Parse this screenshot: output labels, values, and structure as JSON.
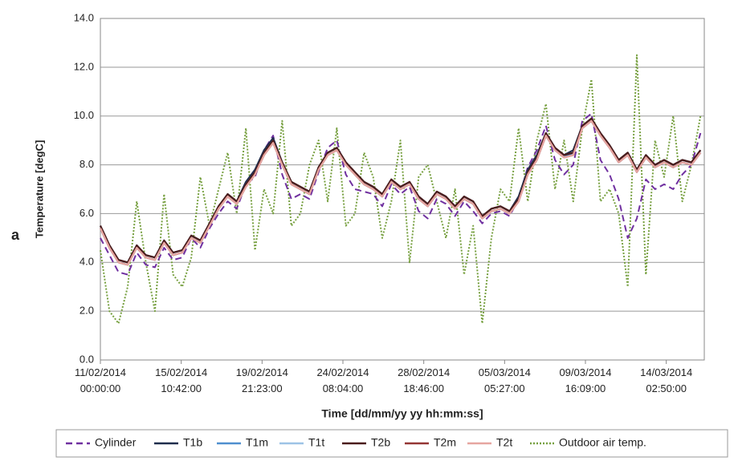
{
  "chart_data": {
    "type": "line",
    "panel_label": "a",
    "y_label": "Temperature [degC]",
    "x_label": "Time [dd/mm/yy yy hh:mm:ss]",
    "x": [
      "11/02/2014 00:00:00",
      "11/02/2014 12:00:00",
      "12/02/2014 00:00:00",
      "12/02/2014 12:00:00",
      "13/02/2014 00:00:00",
      "13/02/2014 12:00:00",
      "14/02/2014 00:00:00",
      "14/02/2014 12:00:00",
      "15/02/2014 00:00:00",
      "15/02/2014 12:00:00",
      "16/02/2014 00:00:00",
      "16/02/2014 12:00:00",
      "17/02/2014 00:00:00",
      "17/02/2014 12:00:00",
      "18/02/2014 00:00:00",
      "18/02/2014 12:00:00",
      "19/02/2014 00:00:00",
      "19/02/2014 12:00:00",
      "20/02/2014 00:00:00",
      "20/02/2014 12:00:00",
      "21/02/2014 00:00:00",
      "21/02/2014 12:00:00",
      "22/02/2014 00:00:00",
      "22/02/2014 12:00:00",
      "23/02/2014 00:00:00",
      "23/02/2014 12:00:00",
      "24/02/2014 00:00:00",
      "24/02/2014 12:00:00",
      "25/02/2014 00:00:00",
      "25/02/2014 12:00:00",
      "26/02/2014 00:00:00",
      "26/02/2014 12:00:00",
      "27/02/2014 00:00:00",
      "27/02/2014 12:00:00",
      "28/02/2014 00:00:00",
      "28/02/2014 12:00:00",
      "01/03/2014 00:00:00",
      "01/03/2014 12:00:00",
      "02/03/2014 00:00:00",
      "02/03/2014 12:00:00",
      "03/03/2014 00:00:00",
      "03/03/2014 12:00:00",
      "04/03/2014 00:00:00",
      "04/03/2014 12:00:00",
      "05/03/2014 00:00:00",
      "05/03/2014 12:00:00",
      "06/03/2014 00:00:00",
      "06/03/2014 12:00:00",
      "07/03/2014 00:00:00",
      "07/03/2014 12:00:00",
      "08/03/2014 00:00:00",
      "08/03/2014 12:00:00",
      "09/03/2014 00:00:00",
      "09/03/2014 12:00:00",
      "10/03/2014 00:00:00",
      "10/03/2014 12:00:00",
      "11/03/2014 00:00:00",
      "11/03/2014 12:00:00",
      "12/03/2014 00:00:00",
      "12/03/2014 12:00:00",
      "13/03/2014 00:00:00",
      "13/03/2014 12:00:00",
      "14/03/2014 00:00:00",
      "14/03/2014 12:00:00",
      "15/03/2014 00:00:00",
      "15/03/2014 12:00:00",
      "16/03/2014 00:00:00"
    ],
    "xlim": [
      "11/02/2014 00:00:00",
      "16/03/2014 05:00:00"
    ],
    "xticks": [
      "11/02/2014 00:00:00",
      "15/02/2014 10:42:00",
      "19/02/2014 21:23:00",
      "24/02/2014 08:04:00",
      "28/02/2014 18:46:00",
      "05/03/2014 05:27:00",
      "09/03/2014 16:09:00",
      "14/03/2014 02:50:00"
    ],
    "ylim": [
      0,
      14
    ],
    "yticks": [
      {
        "value": 0,
        "label": "0.0"
      },
      {
        "value": 2,
        "label": "2.0"
      },
      {
        "value": 4,
        "label": "4.0"
      },
      {
        "value": 6,
        "label": "6.0"
      },
      {
        "value": 8,
        "label": "8.0"
      },
      {
        "value": 10,
        "label": "10.0"
      },
      {
        "value": 12,
        "label": "12.0"
      },
      {
        "value": 14,
        "label": "14.0"
      }
    ],
    "grid": true,
    "legend": "bottom",
    "series": [
      {
        "name": "Cylinder",
        "color": "#7030a0",
        "dash": "dashed",
        "values": [
          5.0,
          4.3,
          3.6,
          3.5,
          4.4,
          3.9,
          3.8,
          4.6,
          4.1,
          4.2,
          5.0,
          4.6,
          5.4,
          6.0,
          6.5,
          6.2,
          7.2,
          7.5,
          8.6,
          9.2,
          7.6,
          6.6,
          6.8,
          6.6,
          7.7,
          8.7,
          9.0,
          7.6,
          7.0,
          6.9,
          6.8,
          6.3,
          7.2,
          6.8,
          7.1,
          6.1,
          5.8,
          6.6,
          6.4,
          5.9,
          6.5,
          6.1,
          5.6,
          6.0,
          6.1,
          5.9,
          6.6,
          7.9,
          8.6,
          9.6,
          8.2,
          7.6,
          8.0,
          9.8,
          10.1,
          8.2,
          7.6,
          6.6,
          5.0,
          5.8,
          7.4,
          7.0,
          7.2,
          7.0,
          7.6,
          8.0,
          9.3
        ]
      },
      {
        "name": "T1b",
        "color": "#1f2d4d",
        "dash": "solid",
        "values": [
          5.5,
          4.7,
          4.1,
          4.0,
          4.7,
          4.3,
          4.2,
          4.9,
          4.4,
          4.5,
          5.1,
          4.9,
          5.6,
          6.3,
          6.8,
          6.5,
          7.3,
          7.8,
          8.6,
          9.1,
          8.1,
          7.3,
          7.1,
          6.9,
          7.9,
          8.5,
          8.7,
          8.1,
          7.7,
          7.3,
          7.1,
          6.8,
          7.4,
          7.1,
          7.3,
          6.7,
          6.4,
          6.9,
          6.7,
          6.3,
          6.7,
          6.5,
          5.9,
          6.2,
          6.3,
          6.1,
          6.7,
          7.8,
          8.4,
          9.3,
          8.7,
          8.4,
          8.6,
          9.6,
          9.9,
          9.3,
          8.8,
          8.2,
          8.5,
          7.8,
          8.4,
          8.0,
          8.2,
          8.0,
          8.2,
          8.1,
          8.6
        ]
      },
      {
        "name": "T1m",
        "color": "#4f8fcf",
        "dash": "solid",
        "values": [
          5.4,
          4.6,
          4.0,
          3.9,
          4.7,
          4.2,
          4.1,
          4.8,
          4.3,
          4.4,
          5.0,
          4.8,
          5.5,
          6.2,
          6.7,
          6.4,
          7.2,
          7.7,
          8.5,
          9.0,
          8.0,
          7.2,
          7.0,
          6.8,
          7.8,
          8.4,
          8.6,
          8.0,
          7.6,
          7.2,
          7.0,
          6.7,
          7.3,
          7.0,
          7.2,
          6.6,
          6.3,
          6.8,
          6.6,
          6.2,
          6.6,
          6.4,
          5.8,
          6.1,
          6.2,
          6.0,
          6.6,
          7.7,
          8.3,
          9.2,
          8.6,
          8.3,
          8.5,
          9.5,
          9.8,
          9.2,
          8.7,
          8.1,
          8.4,
          7.7,
          8.3,
          7.9,
          8.1,
          7.9,
          8.1,
          8.0,
          8.5
        ]
      },
      {
        "name": "T1t",
        "color": "#9dc3e6",
        "dash": "solid",
        "values": [
          5.4,
          4.6,
          4.0,
          3.9,
          4.6,
          4.2,
          4.1,
          4.8,
          4.3,
          4.4,
          5.0,
          4.8,
          5.5,
          6.2,
          6.7,
          6.4,
          7.1,
          7.6,
          8.4,
          8.9,
          8.0,
          7.2,
          7.0,
          6.8,
          7.8,
          8.4,
          8.6,
          8.0,
          7.6,
          7.2,
          7.0,
          6.7,
          7.3,
          7.0,
          7.2,
          6.6,
          6.3,
          6.8,
          6.6,
          6.2,
          6.6,
          6.4,
          5.8,
          6.1,
          6.2,
          6.0,
          6.5,
          7.6,
          8.2,
          9.2,
          8.6,
          8.3,
          8.4,
          9.5,
          9.8,
          9.2,
          8.7,
          8.1,
          8.4,
          7.7,
          8.3,
          7.9,
          8.1,
          7.9,
          8.1,
          8.0,
          8.5
        ]
      },
      {
        "name": "T2b",
        "color": "#4a1c1c",
        "dash": "solid",
        "values": [
          5.5,
          4.7,
          4.1,
          4.0,
          4.7,
          4.3,
          4.2,
          4.9,
          4.4,
          4.5,
          5.1,
          4.9,
          5.6,
          6.3,
          6.8,
          6.5,
          7.2,
          7.7,
          8.5,
          9.0,
          8.1,
          7.3,
          7.1,
          6.9,
          7.9,
          8.5,
          8.7,
          8.1,
          7.7,
          7.3,
          7.1,
          6.8,
          7.4,
          7.1,
          7.3,
          6.7,
          6.4,
          6.9,
          6.7,
          6.3,
          6.7,
          6.5,
          5.9,
          6.2,
          6.3,
          6.1,
          6.6,
          7.7,
          8.3,
          9.3,
          8.7,
          8.4,
          8.5,
          9.6,
          9.9,
          9.3,
          8.8,
          8.2,
          8.5,
          7.8,
          8.4,
          8.0,
          8.2,
          8.0,
          8.2,
          8.1,
          8.6
        ]
      },
      {
        "name": "T2m",
        "color": "#943634",
        "dash": "solid",
        "values": [
          5.4,
          4.6,
          4.0,
          3.9,
          4.6,
          4.2,
          4.1,
          4.8,
          4.3,
          4.4,
          5.0,
          4.8,
          5.5,
          6.2,
          6.7,
          6.4,
          7.1,
          7.6,
          8.4,
          8.9,
          8.0,
          7.2,
          7.0,
          6.8,
          7.8,
          8.4,
          8.6,
          8.0,
          7.6,
          7.2,
          7.0,
          6.7,
          7.3,
          7.0,
          7.2,
          6.6,
          6.3,
          6.8,
          6.6,
          6.2,
          6.6,
          6.4,
          5.8,
          6.1,
          6.2,
          6.0,
          6.5,
          7.6,
          8.2,
          9.2,
          8.6,
          8.3,
          8.4,
          9.5,
          9.8,
          9.2,
          8.7,
          8.1,
          8.4,
          7.7,
          8.3,
          7.9,
          8.1,
          7.9,
          8.1,
          8.0,
          8.5
        ]
      },
      {
        "name": "T2t",
        "color": "#e6a5a0",
        "dash": "solid",
        "values": [
          5.4,
          4.6,
          4.0,
          3.9,
          4.6,
          4.2,
          4.1,
          4.8,
          4.3,
          4.4,
          5.0,
          4.8,
          5.5,
          6.2,
          6.7,
          6.4,
          7.1,
          7.6,
          8.4,
          8.9,
          8.0,
          7.2,
          7.0,
          6.8,
          7.8,
          8.4,
          8.6,
          8.0,
          7.6,
          7.2,
          7.0,
          6.7,
          7.3,
          7.0,
          7.2,
          6.6,
          6.3,
          6.8,
          6.6,
          6.2,
          6.6,
          6.4,
          5.8,
          6.1,
          6.2,
          6.0,
          6.5,
          7.6,
          8.2,
          9.2,
          8.6,
          8.3,
          8.4,
          9.5,
          9.8,
          9.2,
          8.7,
          8.1,
          8.4,
          7.7,
          8.3,
          7.9,
          8.1,
          7.9,
          8.1,
          8.0,
          8.5
        ]
      },
      {
        "name": "Outdoor air temp.",
        "color": "#77a040",
        "dash": "dotted",
        "values": [
          4.5,
          2.0,
          1.5,
          3.0,
          6.5,
          4.0,
          2.0,
          6.8,
          3.5,
          3.0,
          4.2,
          7.5,
          5.5,
          7.0,
          8.5,
          6.0,
          9.5,
          4.5,
          7.0,
          6.0,
          9.8,
          5.5,
          6.0,
          8.0,
          9.0,
          6.5,
          9.5,
          5.5,
          6.0,
          8.5,
          7.5,
          5.0,
          6.5,
          9.0,
          4.0,
          7.5,
          8.0,
          6.5,
          5.0,
          7.0,
          3.5,
          5.5,
          1.5,
          5.0,
          7.0,
          6.5,
          9.5,
          6.5,
          9.0,
          10.5,
          7.0,
          9.0,
          6.5,
          9.5,
          11.5,
          6.5,
          7.0,
          6.0,
          3.0,
          12.5,
          3.5,
          9.0,
          7.5,
          10.0,
          6.5,
          8.0,
          10.0
        ]
      }
    ]
  }
}
